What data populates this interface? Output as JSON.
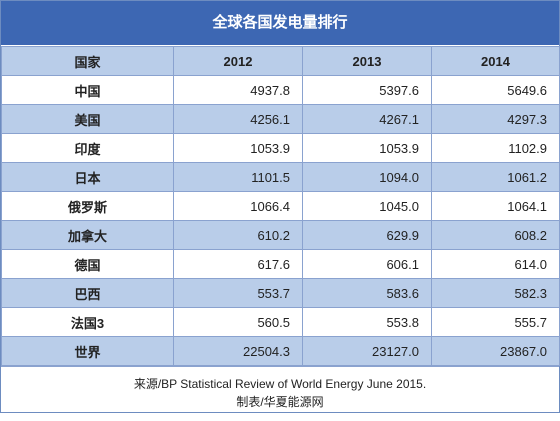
{
  "title": "全球各国发电量排行",
  "columns": [
    "国家",
    "2012",
    "2013",
    "2014"
  ],
  "rows": [
    {
      "country": "中国",
      "v2012": "4937.8",
      "v2013": "5397.6",
      "v2014": "5649.6"
    },
    {
      "country": "美国",
      "v2012": "4256.1",
      "v2013": "4267.1",
      "v2014": "4297.3"
    },
    {
      "country": "印度",
      "v2012": "1053.9",
      "v2013": "1053.9",
      "v2014": "1102.9"
    },
    {
      "country": "日本",
      "v2012": "1101.5",
      "v2013": "1094.0",
      "v2014": "1061.2"
    },
    {
      "country": "俄罗斯",
      "v2012": "1066.4",
      "v2013": "1045.0",
      "v2014": "1064.1"
    },
    {
      "country": "加拿大",
      "v2012": "610.2",
      "v2013": "629.9",
      "v2014": "608.2"
    },
    {
      "country": "德国",
      "v2012": "617.6",
      "v2013": "606.1",
      "v2014": "614.0"
    },
    {
      "country": "巴西",
      "v2012": "553.7",
      "v2013": "583.6",
      "v2014": "582.3"
    },
    {
      "country": "法国3",
      "v2012": "560.5",
      "v2013": "553.8",
      "v2014": "555.7"
    },
    {
      "country": "世界",
      "v2012": "22504.3",
      "v2013": "23127.0",
      "v2014": "23867.0"
    }
  ],
  "footer": {
    "source": "来源/BP Statistical Review of World Energy June 2015.",
    "credit": "制表/华夏能源网"
  }
}
